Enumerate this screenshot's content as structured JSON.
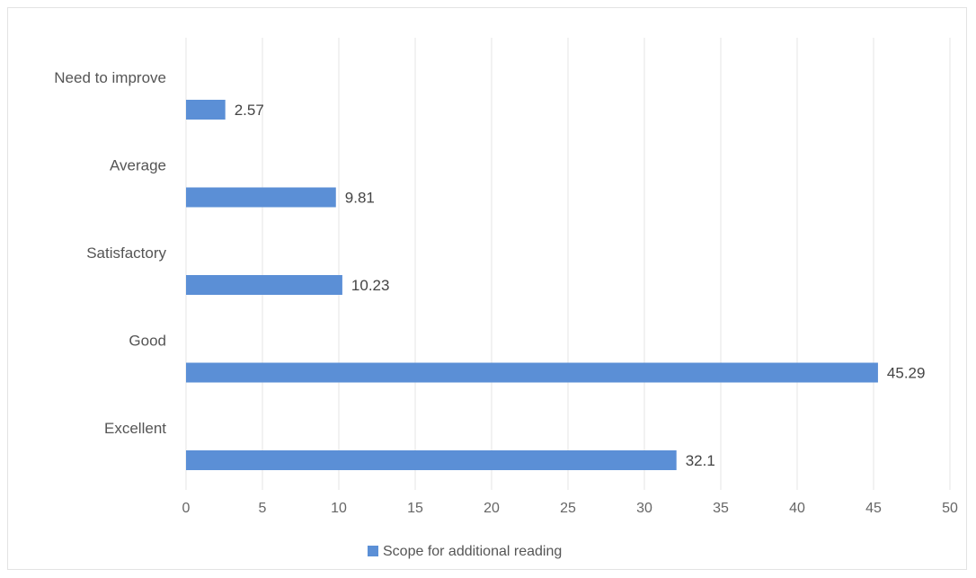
{
  "chart_data": {
    "type": "bar",
    "orientation": "horizontal",
    "categories": [
      "Excellent",
      "Good",
      "Satisfactory",
      "Average",
      "Need to improve"
    ],
    "series": [
      {
        "name": "Scope for additional reading",
        "values": [
          32.1,
          45.29,
          10.23,
          9.81,
          2.57
        ]
      }
    ],
    "value_labels": [
      "32.1",
      "45.29",
      "10.23",
      "9.81",
      "2.57"
    ],
    "xlim": [
      0,
      50
    ],
    "xticks": [
      0,
      5,
      10,
      15,
      20,
      25,
      30,
      35,
      40,
      45,
      50
    ],
    "xtick_labels": [
      "0",
      "5",
      "10",
      "15",
      "20",
      "25",
      "30",
      "35",
      "40",
      "45",
      "50"
    ],
    "grid": "vertical",
    "legend_position": "bottom",
    "bar_color": "#5b8fd6",
    "title": "",
    "xlabel": "",
    "ylabel": ""
  }
}
